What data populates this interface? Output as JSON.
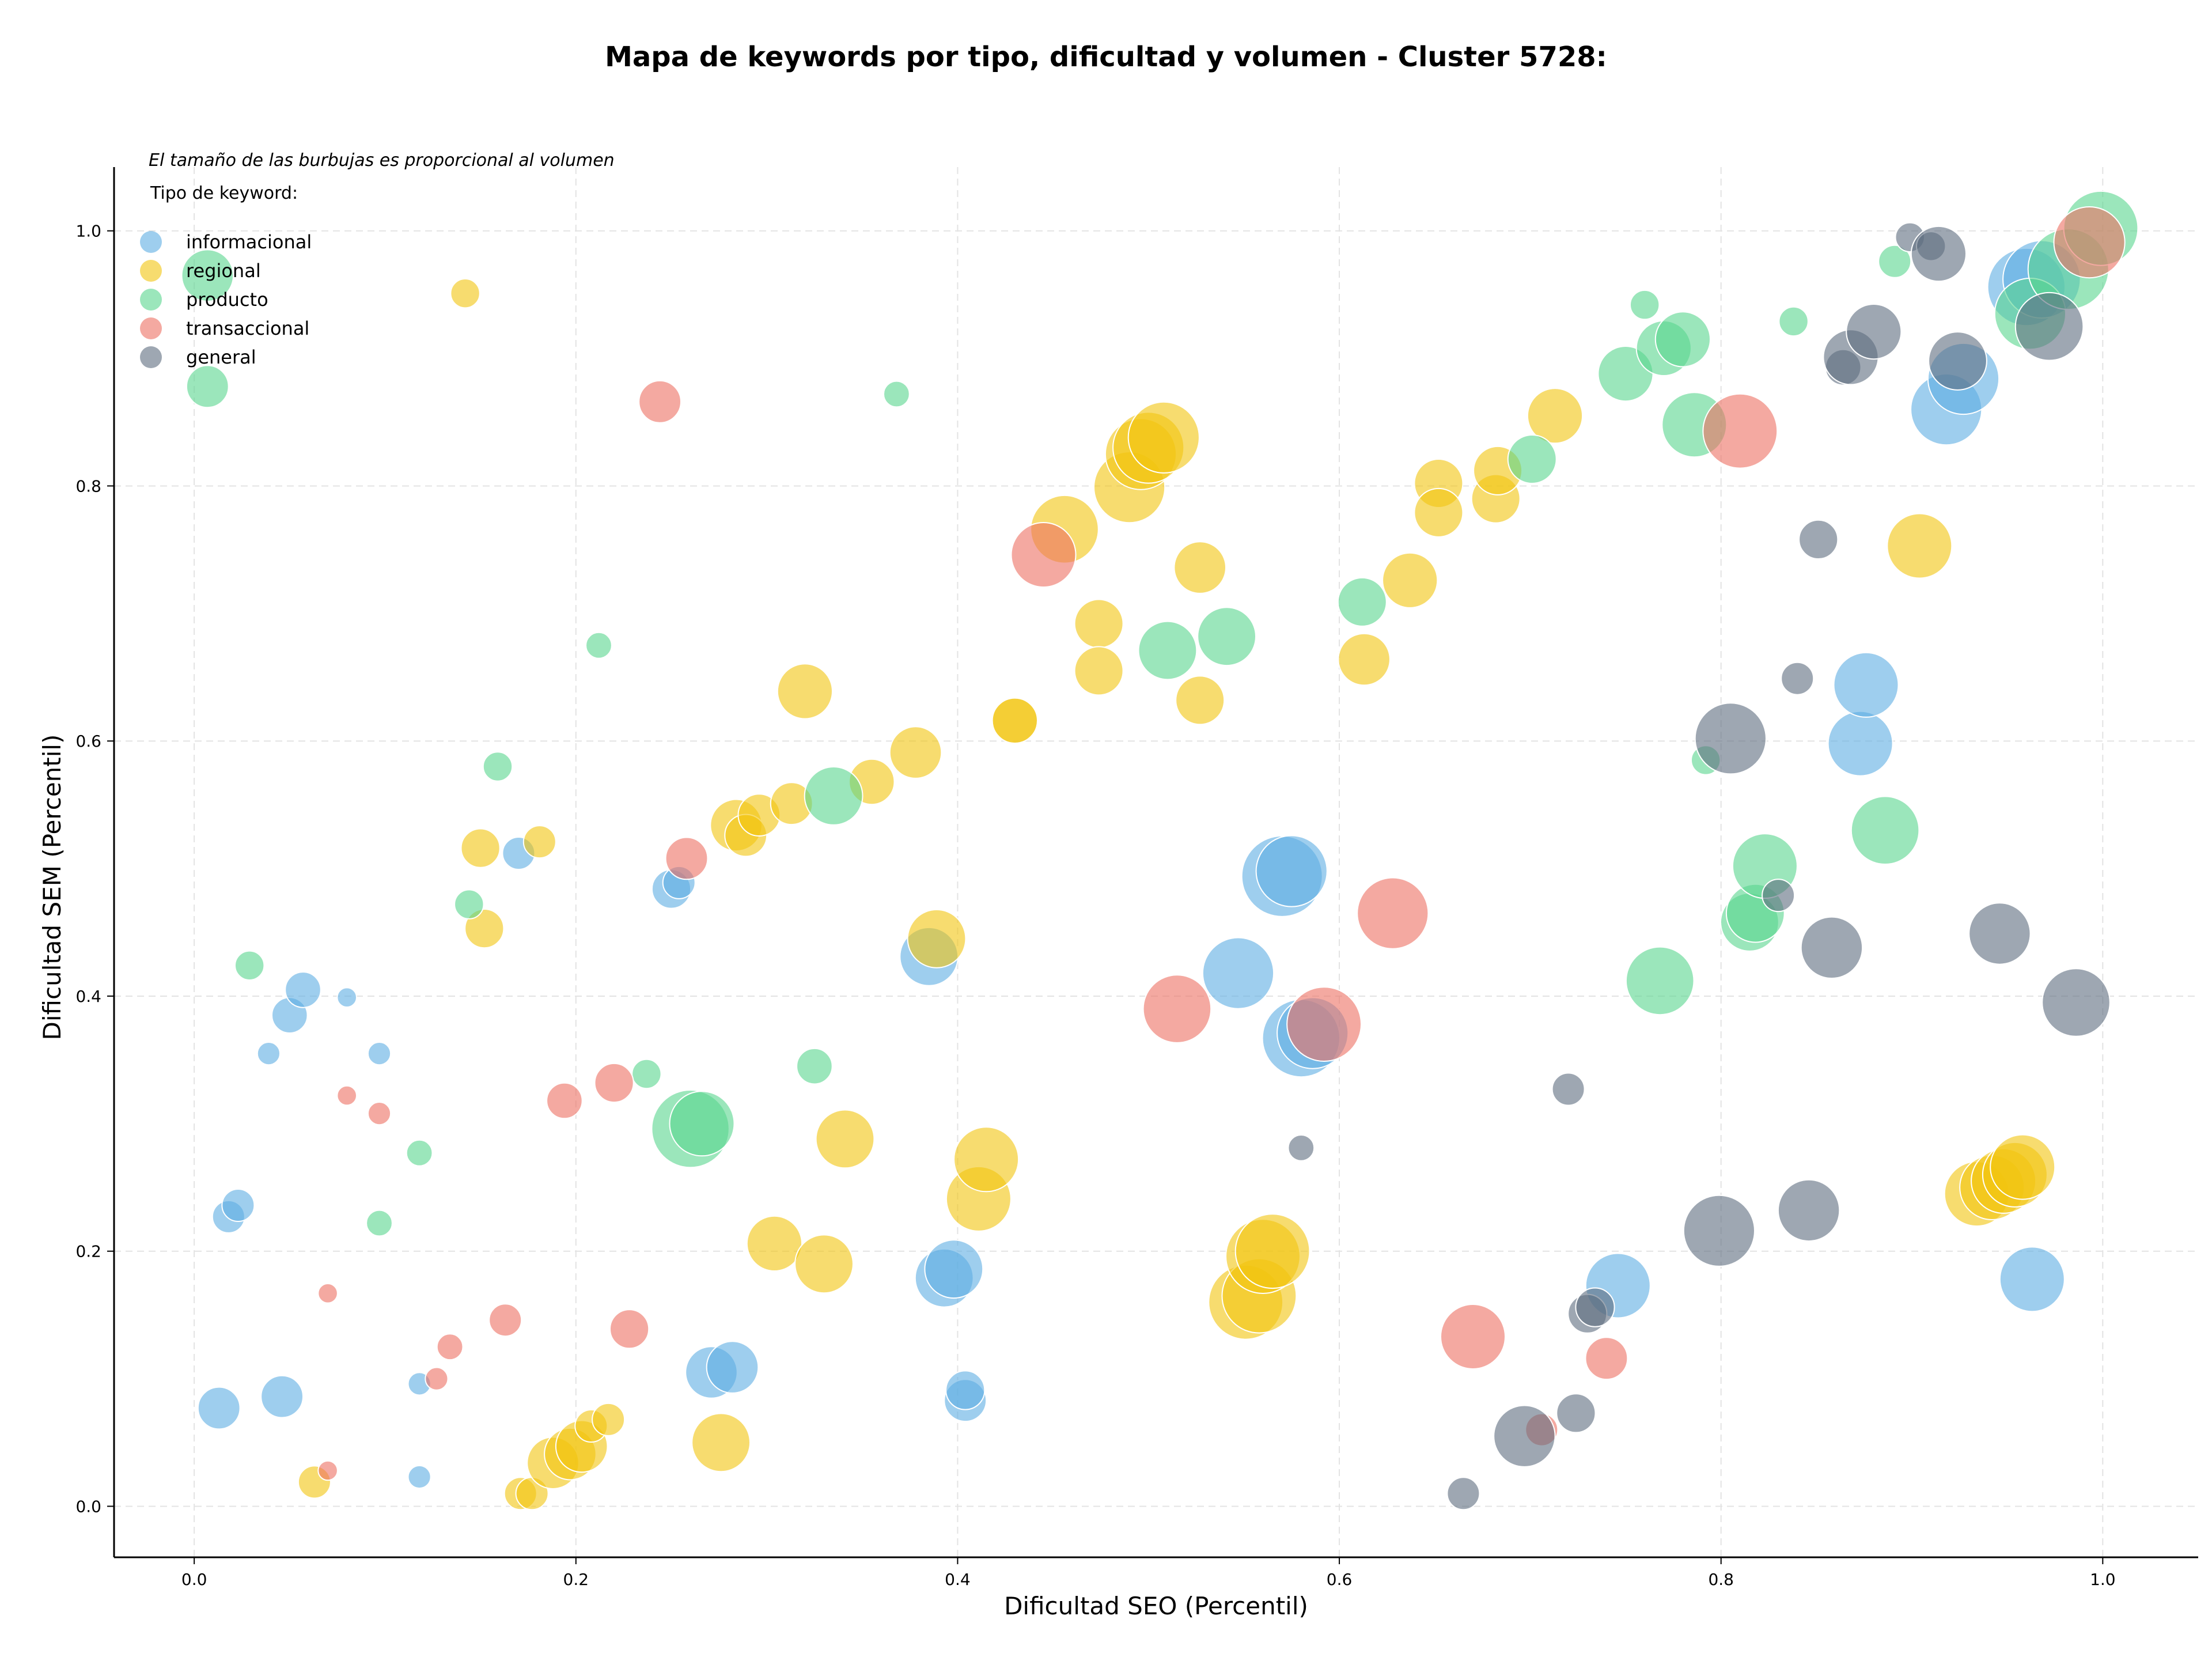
{
  "chart_data": {
    "type": "scatter",
    "title": "Mapa de keywords por tipo, dificultad y volumen - Cluster 5728:",
    "xlabel": "Dificultad SEO (Percentil)",
    "ylabel": "Dificultad SEM (Percentil)",
    "xlim": [
      -0.042,
      1.05
    ],
    "ylim": [
      -0.04,
      1.05
    ],
    "xticks": [
      "0.0",
      "0.2",
      "0.4",
      "0.6",
      "0.8",
      "1.0"
    ],
    "yticks": [
      "0.0",
      "0.2",
      "0.4",
      "0.6",
      "0.8",
      "1.0"
    ],
    "grid": true,
    "note": "El tamaño de las burbujas es proporcional al volumen",
    "legend": {
      "title": "Tipo de keyword:",
      "placement": "top-left",
      "entries": [
        "informacional",
        "regional",
        "producto",
        "transaccional",
        "general"
      ]
    },
    "series": [
      {
        "name": "informacional",
        "color": "#5dade2",
        "points": [
          [
            0.013,
            0.077,
            1.3
          ],
          [
            0.046,
            0.086,
            1.3
          ],
          [
            0.018,
            0.227,
            1.0
          ],
          [
            0.023,
            0.236,
            1.0
          ],
          [
            0.05,
            0.385,
            1.1
          ],
          [
            0.057,
            0.405,
            1.1
          ],
          [
            0.039,
            0.355,
            0.7
          ],
          [
            0.08,
            0.399,
            0.6
          ],
          [
            0.097,
            0.355,
            0.7
          ],
          [
            0.118,
            0.096,
            0.7
          ],
          [
            0.118,
            0.023,
            0.7
          ],
          [
            0.17,
            0.512,
            1.0
          ],
          [
            0.25,
            0.484,
            1.2
          ],
          [
            0.254,
            0.489,
            1.0
          ],
          [
            0.271,
            0.105,
            1.6
          ],
          [
            0.282,
            0.109,
            1.6
          ],
          [
            0.385,
            0.431,
            1.8
          ],
          [
            0.393,
            0.179,
            1.8
          ],
          [
            0.398,
            0.186,
            1.8
          ],
          [
            0.404,
            0.083,
            1.3
          ],
          [
            0.404,
            0.091,
            1.2
          ],
          [
            0.547,
            0.418,
            2.2
          ],
          [
            0.57,
            0.494,
            2.5
          ],
          [
            0.575,
            0.498,
            2.2
          ],
          [
            0.58,
            0.367,
            2.4
          ],
          [
            0.586,
            0.371,
            2.2
          ],
          [
            0.746,
            0.173,
            2.0
          ],
          [
            0.873,
            0.598,
            2.0
          ],
          [
            0.876,
            0.644,
            2.0
          ],
          [
            0.918,
            0.86,
            2.2
          ],
          [
            0.927,
            0.884,
            2.2
          ],
          [
            0.963,
            0.178,
            2.0
          ],
          [
            0.96,
            0.956,
            2.4
          ],
          [
            0.968,
            0.962,
            2.4
          ]
        ]
      },
      {
        "name": "regional",
        "color": "#f1c40f",
        "points": [
          [
            0.142,
            0.951,
            0.9
          ],
          [
            0.15,
            0.516,
            1.2
          ],
          [
            0.152,
            0.453,
            1.2
          ],
          [
            0.181,
            0.521,
            1.0
          ],
          [
            0.063,
            0.019,
            1.0
          ],
          [
            0.171,
            0.01,
            1.0
          ],
          [
            0.177,
            0.01,
            1.0
          ],
          [
            0.188,
            0.034,
            1.6
          ],
          [
            0.197,
            0.041,
            1.6
          ],
          [
            0.203,
            0.047,
            1.6
          ],
          [
            0.208,
            0.063,
            1.0
          ],
          [
            0.217,
            0.068,
            1.0
          ],
          [
            0.276,
            0.05,
            1.8
          ],
          [
            0.284,
            0.534,
            1.6
          ],
          [
            0.289,
            0.526,
            1.3
          ],
          [
            0.296,
            0.542,
            1.3
          ],
          [
            0.304,
            0.206,
            1.7
          ],
          [
            0.313,
            0.551,
            1.3
          ],
          [
            0.32,
            0.639,
            1.7
          ],
          [
            0.33,
            0.19,
            1.8
          ],
          [
            0.341,
            0.288,
            1.8
          ],
          [
            0.355,
            0.568,
            1.4
          ],
          [
            0.378,
            0.591,
            1.6
          ],
          [
            0.389,
            0.445,
            1.8
          ],
          [
            0.411,
            0.241,
            2.0
          ],
          [
            0.415,
            0.272,
            2.0
          ],
          [
            0.43,
            0.616,
            1.4
          ],
          [
            0.43,
            0.616,
            1.4
          ],
          [
            0.456,
            0.766,
            2.1
          ],
          [
            0.474,
            0.692,
            1.5
          ],
          [
            0.474,
            0.655,
            1.5
          ],
          [
            0.49,
            0.799,
            2.2
          ],
          [
            0.496,
            0.825,
            2.2
          ],
          [
            0.5,
            0.83,
            2.2
          ],
          [
            0.508,
            0.838,
            2.2
          ],
          [
            0.527,
            0.736,
            1.6
          ],
          [
            0.527,
            0.632,
            1.5
          ],
          [
            0.551,
            0.16,
            2.3
          ],
          [
            0.558,
            0.165,
            2.3
          ],
          [
            0.56,
            0.196,
            2.3
          ],
          [
            0.565,
            0.2,
            2.3
          ],
          [
            0.613,
            0.664,
            1.6
          ],
          [
            0.637,
            0.726,
            1.7
          ],
          [
            0.652,
            0.802,
            1.5
          ],
          [
            0.652,
            0.779,
            1.5
          ],
          [
            0.682,
            0.79,
            1.5
          ],
          [
            0.683,
            0.812,
            1.5
          ],
          [
            0.713,
            0.855,
            1.7
          ],
          [
            0.904,
            0.753,
            2.0
          ],
          [
            0.934,
            0.245,
            2.0
          ],
          [
            0.942,
            0.25,
            2.0
          ],
          [
            0.948,
            0.255,
            2.0
          ],
          [
            0.954,
            0.26,
            2.0
          ],
          [
            0.958,
            0.266,
            2.0
          ]
        ]
      },
      {
        "name": "producto",
        "color": "#58d68d",
        "points": [
          [
            0.007,
            0.965,
            1.6
          ],
          [
            0.007,
            0.878,
            1.3
          ],
          [
            0.029,
            0.424,
            0.9
          ],
          [
            0.118,
            0.277,
            0.8
          ],
          [
            0.097,
            0.222,
            0.8
          ],
          [
            0.159,
            0.58,
            0.9
          ],
          [
            0.144,
            0.472,
            0.9
          ],
          [
            0.212,
            0.675,
            0.8
          ],
          [
            0.237,
            0.339,
            0.9
          ],
          [
            0.26,
            0.296,
            2.4
          ],
          [
            0.266,
            0.3,
            2.0
          ],
          [
            0.325,
            0.345,
            1.1
          ],
          [
            0.335,
            0.557,
            1.8
          ],
          [
            0.368,
            0.872,
            0.8
          ],
          [
            0.51,
            0.671,
            1.8
          ],
          [
            0.541,
            0.682,
            1.8
          ],
          [
            0.612,
            0.709,
            1.5
          ],
          [
            0.701,
            0.821,
            1.5
          ],
          [
            0.75,
            0.888,
            1.7
          ],
          [
            0.76,
            0.942,
            0.9
          ],
          [
            0.77,
            0.908,
            1.7
          ],
          [
            0.78,
            0.915,
            1.7
          ],
          [
            0.786,
            0.848,
            2.0
          ],
          [
            0.768,
            0.412,
            2.1
          ],
          [
            0.792,
            0.585,
            0.9
          ],
          [
            0.815,
            0.458,
            1.8
          ],
          [
            0.818,
            0.465,
            1.8
          ],
          [
            0.823,
            0.502,
            2.0
          ],
          [
            0.838,
            0.929,
            0.9
          ],
          [
            0.886,
            0.53,
            2.1
          ],
          [
            0.891,
            0.976,
            1.0
          ],
          [
            0.962,
            0.935,
            2.2
          ],
          [
            0.982,
            0.97,
            2.5
          ],
          [
            0.999,
            1.002,
            2.3
          ]
        ]
      },
      {
        "name": "transaccional",
        "color": "#ec7063",
        "points": [
          [
            0.07,
            0.167,
            0.6
          ],
          [
            0.07,
            0.028,
            0.6
          ],
          [
            0.08,
            0.322,
            0.6
          ],
          [
            0.097,
            0.308,
            0.7
          ],
          [
            0.127,
            0.1,
            0.7
          ],
          [
            0.134,
            0.125,
            0.8
          ],
          [
            0.163,
            0.146,
            1.0
          ],
          [
            0.194,
            0.318,
            1.1
          ],
          [
            0.22,
            0.332,
            1.2
          ],
          [
            0.228,
            0.139,
            1.2
          ],
          [
            0.244,
            0.866,
            1.3
          ],
          [
            0.258,
            0.508,
            1.3
          ],
          [
            0.445,
            0.746,
            2.0
          ],
          [
            0.515,
            0.39,
            2.1
          ],
          [
            0.592,
            0.378,
            2.3
          ],
          [
            0.628,
            0.465,
            2.2
          ],
          [
            0.67,
            0.133,
            2.0
          ],
          [
            0.706,
            0.06,
            1.0
          ],
          [
            0.74,
            0.116,
            1.3
          ],
          [
            0.81,
            0.843,
            2.3
          ],
          [
            0.993,
            0.991,
            2.2
          ]
        ]
      },
      {
        "name": "general",
        "color": "#5d6d7e",
        "points": [
          [
            0.58,
            0.281,
            0.8
          ],
          [
            0.665,
            0.01,
            1.0
          ],
          [
            0.697,
            0.055,
            1.9
          ],
          [
            0.72,
            0.327,
            1.0
          ],
          [
            0.724,
            0.073,
            1.2
          ],
          [
            0.73,
            0.151,
            1.2
          ],
          [
            0.734,
            0.156,
            1.2
          ],
          [
            0.799,
            0.216,
            2.2
          ],
          [
            0.805,
            0.602,
            2.2
          ],
          [
            0.83,
            0.479,
            1.0
          ],
          [
            0.84,
            0.649,
            1.0
          ],
          [
            0.846,
            0.232,
            1.9
          ],
          [
            0.851,
            0.758,
            1.2
          ],
          [
            0.858,
            0.438,
            1.9
          ],
          [
            0.864,
            0.893,
            1.1
          ],
          [
            0.868,
            0.901,
            1.7
          ],
          [
            0.88,
            0.921,
            1.7
          ],
          [
            0.899,
            0.995,
            0.9
          ],
          [
            0.91,
            0.988,
            0.9
          ],
          [
            0.914,
            0.982,
            1.7
          ],
          [
            0.924,
            0.898,
            1.8
          ],
          [
            0.946,
            0.449,
            1.9
          ],
          [
            0.972,
            0.925,
            2.1
          ],
          [
            0.986,
            0.395,
            2.1
          ]
        ]
      }
    ]
  }
}
